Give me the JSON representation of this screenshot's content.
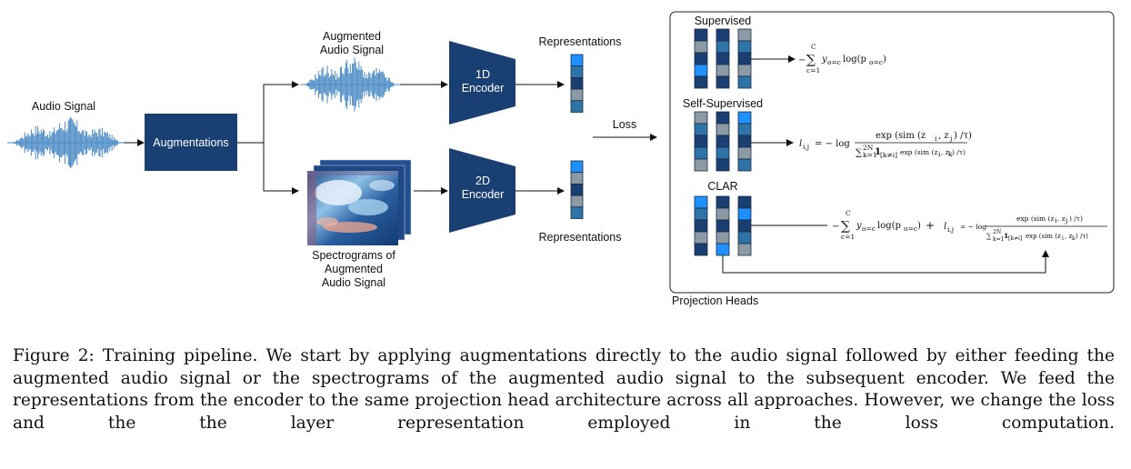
{
  "figure": {
    "labels": {
      "audio_signal": "Audio Signal",
      "augmented_audio_l1": "Augmented",
      "augmented_audio_l2": "Audio Signal",
      "augmentations": "Augmentations",
      "encoder_1d_l1": "1D",
      "encoder_1d_l2": "Encoder",
      "encoder_2d_l1": "2D",
      "encoder_2d_l2": "Encoder",
      "representations_top": "Representations",
      "representations_bottom": "Representations",
      "spectrogram_l1": "Spectrograms of",
      "spectrogram_l2": "Augmented",
      "spectrogram_l3": "Audio Signal",
      "loss": "Loss",
      "supervised": "Supervised",
      "self_supervised": "Self-Supervised",
      "clar": "CLAR",
      "projection_heads": "Projection Heads"
    },
    "equations": {
      "ce_prefix": "−",
      "ce_sum_top": "C",
      "ce_sum_symbol": "∑",
      "ce_sum_bottom": "c=1",
      "ce_body": "y",
      "ce_sub": "o=c",
      "ce_log": "log(p",
      "ce_log_sub": "o=c",
      "ce_close": ")",
      "nt_lhs": "l",
      "nt_lhs_sub": "i,j",
      "nt_eq": "= − log",
      "nt_num": "exp (sim (z",
      "nt_num_i": "i",
      "nt_num_sep": ", z",
      "nt_num_j": "j",
      "nt_num_close": ") /τ)",
      "nt_den_sum": "∑",
      "nt_den_top": "2N",
      "nt_den_bottom": "k=1",
      "nt_den_ind": "1",
      "nt_den_ind_sub": "[k≠i]",
      "nt_den_exp": "exp (sim (z",
      "nt_den_i": "i",
      "nt_den_sep": ", z",
      "nt_den_k": "k",
      "nt_den_close": ") /τ)",
      "plus": "+"
    },
    "colors": {
      "dark_blue": "#1a3f73",
      "mid_blue": "#2f74a8",
      "bright_blue": "#1e90ff",
      "gray": "#8c9aa6",
      "wave": "#4a8ac4"
    }
  },
  "caption": "Figure 2: Training pipeline. We start by applying augmentations directly to the audio signal followed by either feeding the augmented audio signal or the spectrograms of the augmented audio signal to the subsequent encoder. We feed the representations from the encoder to the same projection head architecture across all approaches. However, we change the loss and the the layer representation employed in the loss computation."
}
